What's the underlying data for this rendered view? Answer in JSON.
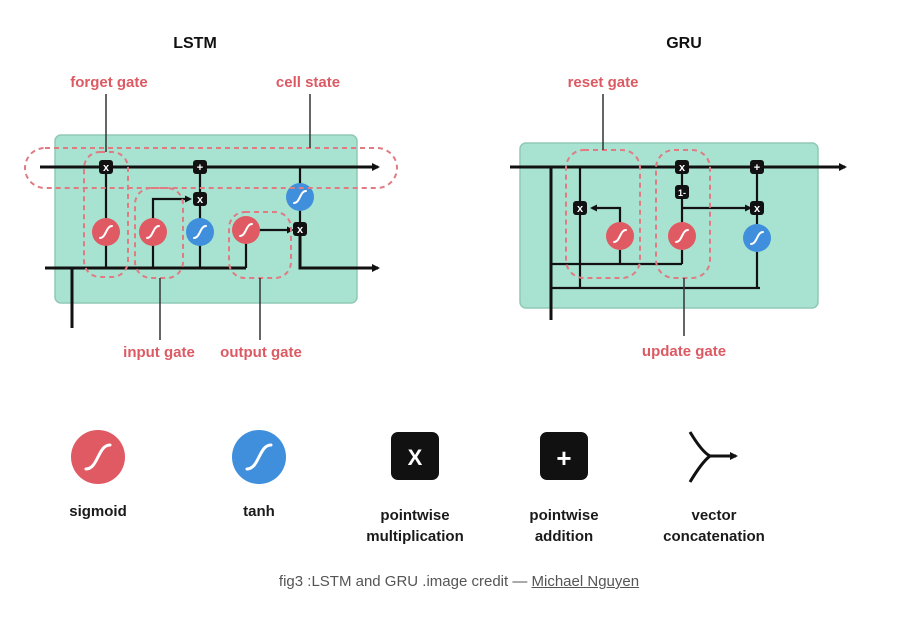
{
  "lstm": {
    "title": "LSTM",
    "labels": {
      "forget_gate": "forget gate",
      "cell_state": "cell state",
      "input_gate": "input gate",
      "output_gate": "output gate"
    },
    "ops": {
      "mult": "x",
      "add": "+"
    }
  },
  "gru": {
    "title": "GRU",
    "labels": {
      "reset_gate": "reset gate",
      "update_gate": "update gate"
    },
    "ops": {
      "mult": "x",
      "add": "+",
      "one_minus": "1-"
    }
  },
  "legend": {
    "sigmoid": "sigmoid",
    "tanh": "tanh",
    "mult_symbol": "X",
    "add_symbol": "+",
    "mult_line1": "pointwise",
    "mult_line2": "multiplication",
    "add_line1": "pointwise",
    "add_line2": "addition",
    "concat_line1": "vector",
    "concat_line2": "concatenation"
  },
  "caption": {
    "text": "fig3 :LSTM and GRU .image credit — ",
    "credit": "Michael Nguyen"
  },
  "colors": {
    "sigmoid": "#df5a63",
    "tanh": "#3f8fdc",
    "cell_box": "#a8e2d0",
    "gate_label": "#dc5a63"
  }
}
